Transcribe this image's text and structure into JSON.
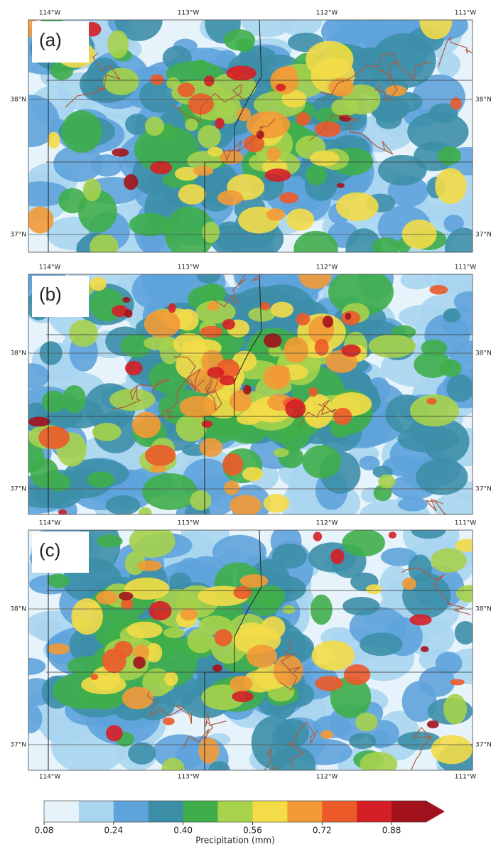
{
  "panels": [
    {
      "letter": "(a)",
      "lon_labels": [
        "114°W",
        "113°W",
        "112°W",
        "111°W"
      ],
      "lat_labels": [
        "38°N",
        "37°N"
      ],
      "right_lat_labels": [
        "38°N",
        "37°N"
      ]
    },
    {
      "letter": "(b)",
      "lon_labels": [
        "114°W",
        "113°W",
        "112°W",
        "111°W"
      ],
      "lat_labels": [
        "38°N",
        "37°N"
      ],
      "right_lat_labels": [
        "38°N",
        "37°N"
      ]
    },
    {
      "letter": "(c)",
      "lon_labels": [
        "114°W",
        "113°W",
        "112°W",
        "111°W"
      ],
      "lat_labels": [
        "38°N",
        "37°N"
      ],
      "right_lat_labels": [
        "38°N",
        "37°N"
      ]
    }
  ],
  "bottom_lon_labels": [
    "114°W",
    "113°W",
    "112°W",
    "111°W"
  ],
  "colorbar": {
    "label": "Precipitation (mm)",
    "lim": [
      0.08,
      0.96
    ],
    "ticks": [
      0.08,
      0.24,
      {
        "value": 0.4,
        "label": "0.40"
      },
      0.56,
      0.72,
      0.88
    ],
    "colors": [
      "#e6f3fb",
      "#a9d5f0",
      "#5fa3db",
      "#3d8fa8",
      "#3fae4a",
      "#a6d24c",
      "#f3dc48",
      "#f39a36",
      "#ec5a2a",
      "#d51f26",
      "#a3121c"
    ]
  }
}
